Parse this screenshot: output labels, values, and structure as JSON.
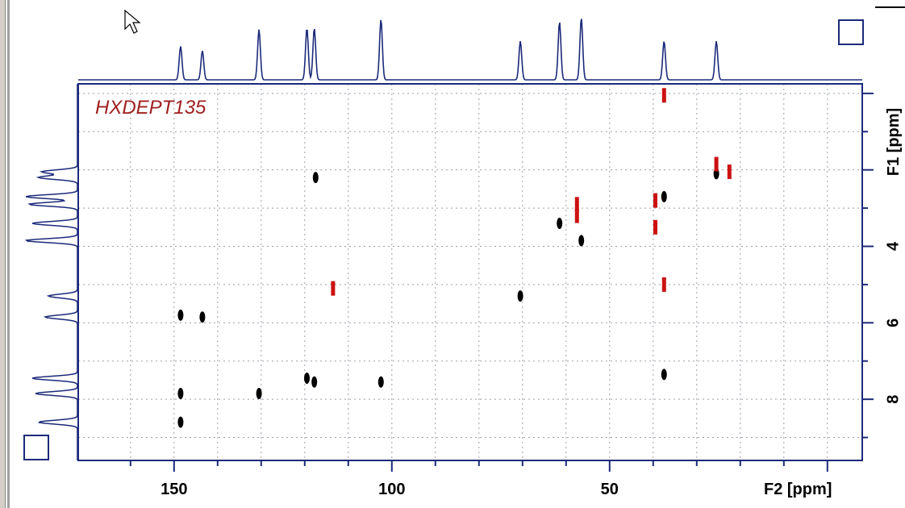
{
  "chart_data": {
    "type": "scatter",
    "title": "HXDEPT135",
    "xlabel": "F2 [ppm]",
    "ylabel": "F1 [ppm]",
    "xlim": [
      172,
      -8
    ],
    "ylim": [
      9.6,
      -0.25
    ],
    "x_ticks": [
      150,
      100,
      50
    ],
    "y_ticks": [
      4,
      6,
      8
    ],
    "grid": true,
    "colors": {
      "positive": "#000000",
      "negative": "#cc1111",
      "title": "#a02020",
      "frame": "#1c2a7a"
    },
    "series": [
      {
        "name": "positive",
        "points": [
          {
            "x": 148.5,
            "y": 8.6
          },
          {
            "x": 148.5,
            "y": 7.85
          },
          {
            "x": 148.5,
            "y": 5.8
          },
          {
            "x": 143.5,
            "y": 5.85
          },
          {
            "x": 130.5,
            "y": 7.85
          },
          {
            "x": 119.5,
            "y": 7.45
          },
          {
            "x": 117.8,
            "y": 7.55
          },
          {
            "x": 117.5,
            "y": 2.2
          },
          {
            "x": 102.5,
            "y": 7.55
          },
          {
            "x": 70.5,
            "y": 5.3
          },
          {
            "x": 61.5,
            "y": 3.4
          },
          {
            "x": 56.5,
            "y": 3.85
          },
          {
            "x": 37.5,
            "y": 2.7
          },
          {
            "x": 37.5,
            "y": 7.35
          },
          {
            "x": 25.5,
            "y": 2.1
          }
        ]
      },
      {
        "name": "negative",
        "points": [
          {
            "x": 113.5,
            "y": 5.1
          },
          {
            "x": 57.5,
            "y": 2.9
          },
          {
            "x": 57.5,
            "y": 3.2
          },
          {
            "x": 39.5,
            "y": 2.8
          },
          {
            "x": 39.5,
            "y": 3.5
          },
          {
            "x": 37.5,
            "y": 5.0
          },
          {
            "x": 37.5,
            "y": 0.05
          },
          {
            "x": 25.5,
            "y": 1.85
          },
          {
            "x": 22.5,
            "y": 2.05
          }
        ]
      }
    ],
    "f2_projection_peaks": [
      {
        "x": 148.5,
        "h": 0.52
      },
      {
        "x": 143.5,
        "h": 0.45
      },
      {
        "x": 130.5,
        "h": 0.78
      },
      {
        "x": 119.5,
        "h": 0.8
      },
      {
        "x": 117.8,
        "h": 0.8
      },
      {
        "x": 102.5,
        "h": 0.94
      },
      {
        "x": 70.5,
        "h": 0.6
      },
      {
        "x": 61.5,
        "h": 0.9
      },
      {
        "x": 56.5,
        "h": 0.96
      },
      {
        "x": 37.5,
        "h": 0.6
      },
      {
        "x": 25.5,
        "h": 0.6
      }
    ],
    "f1_projection_peaks": [
      {
        "y": 8.6,
        "h": 0.6
      },
      {
        "y": 7.85,
        "h": 0.65
      },
      {
        "y": 7.45,
        "h": 0.7
      },
      {
        "y": 5.85,
        "h": 0.5
      },
      {
        "y": 5.3,
        "h": 0.45
      },
      {
        "y": 3.85,
        "h": 0.8
      },
      {
        "y": 3.4,
        "h": 0.7
      },
      {
        "y": 2.9,
        "h": 0.75
      },
      {
        "y": 2.7,
        "h": 0.8
      },
      {
        "y": 2.2,
        "h": 0.6
      },
      {
        "y": 2.05,
        "h": 0.55
      }
    ]
  }
}
